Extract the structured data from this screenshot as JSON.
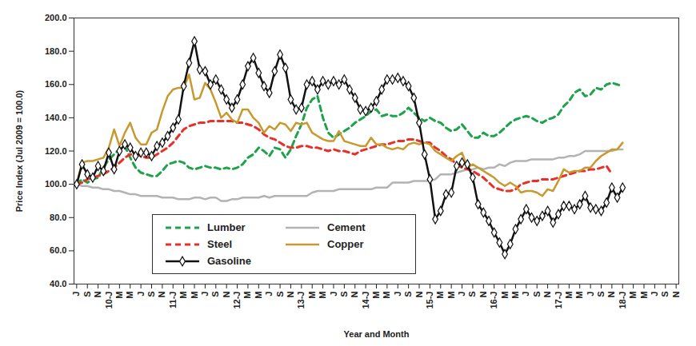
{
  "chart_data": {
    "type": "line",
    "x_label": "Year and Month",
    "y_label": "Price Index (Jul 2009 = 100.0)",
    "ylim": [
      40,
      200
    ],
    "yticks": [
      {
        "value": 40,
        "label": "40.0"
      },
      {
        "value": 60,
        "label": "60.0"
      },
      {
        "value": 80,
        "label": "80.0"
      },
      {
        "value": 100,
        "label": "100.0"
      },
      {
        "value": 120,
        "label": "120.0"
      },
      {
        "value": 140,
        "label": "140.0"
      },
      {
        "value": 160,
        "label": "160.0"
      },
      {
        "value": 180,
        "label": "180.0"
      },
      {
        "value": 200,
        "label": "200.0"
      }
    ],
    "grid": false,
    "legend": "bottom-left",
    "categories": [
      "J",
      null,
      "S",
      null,
      "N",
      null,
      "10-J",
      null,
      "M",
      null,
      "M",
      null,
      "J",
      null,
      "S",
      null,
      "N",
      null,
      "11-J",
      null,
      "M",
      null,
      "M",
      null,
      "J",
      null,
      "S",
      null,
      "N",
      null,
      "12-J",
      null,
      "M",
      null,
      "M",
      null,
      "J",
      null,
      "S",
      null,
      "N",
      null,
      "13-J",
      null,
      "M",
      null,
      "M",
      null,
      "J",
      null,
      "S",
      null,
      "N",
      null,
      "14-J",
      null,
      "M",
      null,
      "M",
      null,
      "J",
      null,
      "S",
      null,
      "N",
      null,
      "15-J",
      null,
      "M",
      null,
      "M",
      null,
      "J",
      null,
      "S",
      null,
      "N",
      null,
      "16-J",
      null,
      "M",
      null,
      "M",
      null,
      "J",
      null,
      "S",
      null,
      "N",
      null,
      "17-J",
      null,
      "M",
      null,
      "M",
      null,
      "J",
      null,
      "S",
      null,
      "N",
      null,
      "18-J",
      null,
      "M",
      null,
      "M",
      null,
      "J",
      null,
      "S",
      null,
      "N"
    ],
    "series": [
      {
        "name": "Lumber",
        "color": "#1fa34a",
        "line_style": "dashed",
        "values": [
          100,
          103,
          101,
          103,
          104,
          110,
          115,
          118,
          121,
          123,
          116,
          110,
          107,
          106,
          105,
          105,
          108,
          112,
          113,
          114,
          113,
          110,
          109,
          110,
          111,
          110,
          110,
          109,
          110,
          109,
          110,
          112,
          116,
          118,
          122,
          120,
          117,
          122,
          121,
          116,
          121,
          129,
          136,
          146,
          151,
          153,
          140,
          131,
          128,
          130,
          132,
          134,
          137,
          139,
          141,
          144,
          145,
          141,
          142,
          141,
          141,
          143,
          146,
          143,
          140,
          138,
          140,
          138,
          137,
          134,
          132,
          133,
          136,
          132,
          128,
          128,
          131,
          129,
          129,
          131,
          134,
          137,
          139,
          140,
          141,
          140,
          138,
          137,
          139,
          140,
          142,
          147,
          150,
          155,
          157,
          153,
          154,
          158,
          157,
          160,
          161,
          160,
          159,
          null,
          null,
          null,
          null,
          null,
          null,
          null,
          null,
          null,
          null
        ]
      },
      {
        "name": "Cement",
        "color": "#b3b3b3",
        "line_style": "solid",
        "values": [
          100,
          99,
          99,
          98,
          98,
          97,
          97,
          96,
          96,
          95,
          94,
          94,
          93,
          93,
          93,
          93,
          92,
          92,
          92,
          91,
          91,
          91,
          92,
          92,
          91,
          92,
          92,
          90,
          90,
          91,
          91,
          92,
          92,
          92,
          92,
          93,
          92,
          93,
          93,
          93,
          93,
          93,
          93,
          93,
          95,
          96,
          96,
          96,
          96,
          97,
          97,
          97,
          97,
          97,
          97,
          97,
          98,
          98,
          98,
          101,
          101,
          101,
          101,
          102,
          102,
          102,
          102,
          103,
          106,
          106,
          106,
          107,
          108,
          109,
          109,
          110,
          109,
          110,
          110,
          112,
          111,
          113,
          114,
          114,
          114,
          115,
          115,
          115,
          115,
          115,
          116,
          116,
          117,
          117,
          118,
          120,
          120,
          120,
          120,
          120,
          120,
          121,
          121,
          null,
          null,
          null,
          null,
          null,
          null,
          null,
          null,
          null,
          null
        ]
      },
      {
        "name": "Steel",
        "color": "#e8302a",
        "line_style": "dashed",
        "values": [
          100,
          101,
          103,
          104,
          105,
          106,
          108,
          110,
          113,
          116,
          118,
          118,
          117,
          116,
          116,
          118,
          120,
          122,
          125,
          129,
          133,
          135,
          136,
          137,
          137,
          138,
          138,
          138,
          138,
          138,
          137,
          137,
          136,
          135,
          133,
          130,
          128,
          127,
          125,
          123,
          122,
          122,
          123,
          123,
          122,
          122,
          121,
          120,
          121,
          120,
          120,
          119,
          118,
          120,
          121,
          122,
          123,
          124,
          124,
          125,
          126,
          126,
          127,
          127,
          126,
          125,
          125,
          122,
          120,
          117,
          115,
          112,
          110,
          109,
          108,
          106,
          104,
          101,
          98,
          97,
          96,
          96,
          97,
          100,
          101,
          102,
          102,
          103,
          103,
          103,
          104,
          105,
          106,
          107,
          108,
          108,
          109,
          109,
          110,
          111,
          106,
          null,
          null,
          null,
          null,
          null,
          null,
          null,
          null,
          null,
          null,
          null,
          null
        ]
      },
      {
        "name": "Copper",
        "color": "#c8992e",
        "line_style": "solid",
        "values": [
          100,
          113,
          114,
          114,
          115,
          116,
          122,
          133,
          123,
          131,
          137,
          128,
          124,
          124,
          131,
          133,
          144,
          153,
          157,
          158,
          158,
          166,
          151,
          152,
          161,
          157,
          149,
          140,
          143,
          139,
          137,
          145,
          145,
          140,
          137,
          131,
          135,
          133,
          137,
          136,
          132,
          137,
          136,
          137,
          131,
          129,
          127,
          126,
          126,
          132,
          126,
          125,
          124,
          123,
          123,
          128,
          124,
          124,
          122,
          121,
          122,
          121,
          124,
          125,
          124,
          125,
          124,
          120,
          118,
          116,
          114,
          117,
          119,
          110,
          112,
          110,
          108,
          106,
          104,
          101,
          99,
          101,
          99,
          95,
          96,
          96,
          95,
          93,
          97,
          96,
          102,
          109,
          107,
          108,
          108,
          110,
          110,
          114,
          117,
          119,
          121,
          121,
          125,
          null,
          null,
          null,
          null,
          null,
          null,
          null,
          null,
          null,
          null
        ]
      },
      {
        "name": "Gasoline",
        "color": "#111111",
        "line_style": "solid",
        "marker": "diamond",
        "values": [
          100,
          112,
          106,
          104,
          111,
          108,
          119,
          109,
          120,
          124,
          122,
          117,
          119,
          119,
          117,
          123,
          125,
          129,
          134,
          139,
          159,
          173,
          186,
          169,
          168,
          160,
          163,
          157,
          151,
          146,
          151,
          160,
          171,
          176,
          167,
          159,
          155,
          168,
          178,
          170,
          151,
          145,
          146,
          160,
          162,
          157,
          162,
          160,
          162,
          160,
          163,
          157,
          152,
          145,
          144,
          146,
          150,
          157,
          163,
          163,
          164,
          162,
          159,
          152,
          137,
          118,
          103,
          79,
          84,
          94,
          95,
          111,
          113,
          112,
          104,
          88,
          83,
          78,
          71,
          65,
          58,
          64,
          73,
          79,
          85,
          80,
          78,
          81,
          84,
          77,
          82,
          87,
          87,
          85,
          88,
          93,
          86,
          85,
          84,
          89,
          98,
          92,
          98,
          null,
          null,
          null,
          null,
          null,
          null,
          null,
          null,
          null,
          null
        ]
      }
    ]
  }
}
